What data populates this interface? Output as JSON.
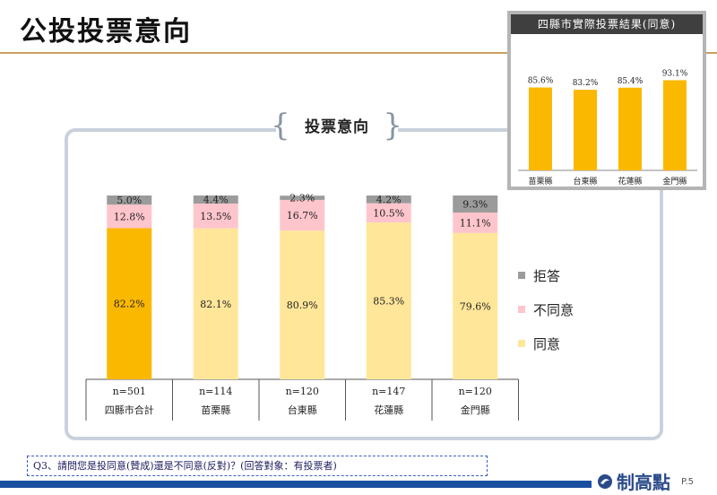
{
  "page": {
    "title": "公投投票意向",
    "frame_label": "投票意向",
    "question": "Q3、請問您是投同意(贊成)還是不同意(反對)？(回答對象：有投票者)",
    "logo_text": "制高點",
    "page_number": "P.5"
  },
  "colors": {
    "agree_total": "#fbb800",
    "agree": "#ffe699",
    "disagree": "#ffc5cc",
    "refuse": "#9b9b9b",
    "inset_bar": "#fbb800",
    "frame": "#c9d1dc",
    "title_rule": "#c8a060",
    "bottom_bar": "#1a4fa0"
  },
  "legend": [
    {
      "label": "拒答",
      "color": "#9b9b9b"
    },
    {
      "label": "不同意",
      "color": "#ffc5cc"
    },
    {
      "label": "同意",
      "color": "#ffe699"
    }
  ],
  "chart_data": [
    {
      "type": "bar",
      "stacked": true,
      "title": "投票意向",
      "categories": [
        "四縣市合計",
        "苗栗縣",
        "台東縣",
        "花蓮縣",
        "金門縣"
      ],
      "sample_sizes": [
        "n=501",
        "n=114",
        "n=120",
        "n=147",
        "n=120"
      ],
      "series": [
        {
          "name": "同意",
          "values": [
            82.2,
            82.1,
            80.9,
            85.3,
            79.6
          ],
          "labels": [
            "82.2%",
            "82.1%",
            "80.9%",
            "85.3%",
            "79.6%"
          ]
        },
        {
          "name": "不同意",
          "values": [
            12.8,
            13.5,
            16.7,
            10.5,
            11.1
          ],
          "labels": [
            "12.8%",
            "13.5%",
            "16.7%",
            "10.5%",
            "11.1%"
          ]
        },
        {
          "name": "拒答",
          "values": [
            5.0,
            4.4,
            2.3,
            4.2,
            9.3
          ],
          "labels": [
            "5.0%",
            "4.4%",
            "2.3%",
            "4.2%",
            "9.3%"
          ]
        }
      ],
      "ylim": [
        0,
        100
      ],
      "legend_position": "right"
    },
    {
      "type": "bar",
      "title": "四縣市實際投票結果(同意)",
      "categories": [
        "苗栗縣",
        "台東縣",
        "花蓮縣",
        "金門縣"
      ],
      "values": [
        85.6,
        83.2,
        85.4,
        93.1
      ],
      "labels": [
        "85.6%",
        "83.2%",
        "85.4%",
        "93.1%"
      ],
      "ylim": [
        0,
        100
      ]
    }
  ]
}
